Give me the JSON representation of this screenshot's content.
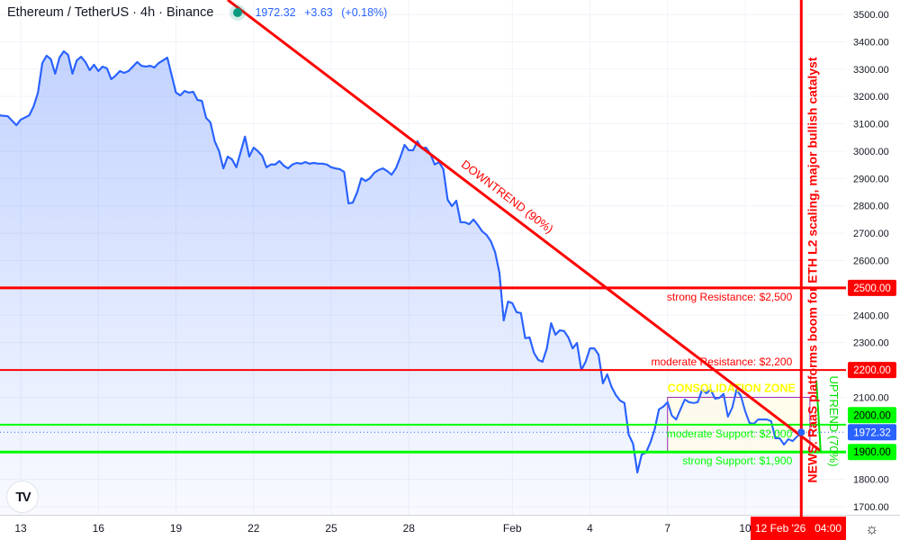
{
  "header": {
    "symbol": "Ethereum / TetherUS · 4h · Binance",
    "last_price": "1972.32",
    "change": "+3.63",
    "change_pct": "(+0.18%)",
    "status_color": "#089981"
  },
  "crosshair": {
    "date": "12 Feb '26",
    "time": "04:00"
  },
  "icons": {
    "logo": "tradingview-logo-icon",
    "settings": "settings-sun-icon"
  },
  "logo_text": "TV",
  "chart_data": {
    "type": "area",
    "title": "Ethereum / TetherUS · 4h · Binance",
    "line_color": "#2962ff",
    "grid": true,
    "ylim": [
      1700,
      3500
    ],
    "y_ticks": [
      1700,
      1800,
      1900,
      2000,
      2100,
      2200,
      2300,
      2400,
      2500,
      2600,
      2700,
      2800,
      2900,
      3000,
      3100,
      3200,
      3300,
      3400,
      3500
    ],
    "x_ticks": [
      {
        "label": "13",
        "date": "2026-01-13"
      },
      {
        "label": "16",
        "date": "2026-01-16"
      },
      {
        "label": "19",
        "date": "2026-01-19"
      },
      {
        "label": "22",
        "date": "2026-01-22"
      },
      {
        "label": "25",
        "date": "2026-01-25"
      },
      {
        "label": "28",
        "date": "2026-01-28"
      },
      {
        "label": "Feb",
        "date": "2026-02-01"
      },
      {
        "label": "4",
        "date": "2026-02-04"
      },
      {
        "label": "7",
        "date": "2026-02-07"
      },
      {
        "label": "10",
        "date": "2026-02-10"
      }
    ],
    "series": [
      {
        "values": [
          [
            "2026-01-12T04:00",
            3131
          ],
          [
            "2026-01-12T12:00",
            3128
          ],
          [
            "2026-01-12T20:00",
            3095
          ],
          [
            "2026-01-13T00:00",
            3115
          ],
          [
            "2026-01-13T08:00",
            3131
          ],
          [
            "2026-01-13T12:00",
            3164
          ],
          [
            "2026-01-13T16:00",
            3214
          ],
          [
            "2026-01-13T20:00",
            3322
          ],
          [
            "2026-01-14T00:00",
            3349
          ],
          [
            "2026-01-14T04:00",
            3336
          ],
          [
            "2026-01-14T08:00",
            3283
          ],
          [
            "2026-01-14T12:00",
            3342
          ],
          [
            "2026-01-14T16:00",
            3365
          ],
          [
            "2026-01-14T20:00",
            3352
          ],
          [
            "2026-01-15T00:00",
            3283
          ],
          [
            "2026-01-15T04:00",
            3332
          ],
          [
            "2026-01-15T08:00",
            3345
          ],
          [
            "2026-01-15T12:00",
            3326
          ],
          [
            "2026-01-15T16:00",
            3296
          ],
          [
            "2026-01-15T20:00",
            3316
          ],
          [
            "2026-01-16T00:00",
            3293
          ],
          [
            "2026-01-16T04:00",
            3309
          ],
          [
            "2026-01-16T08:00",
            3303
          ],
          [
            "2026-01-16T12:00",
            3263
          ],
          [
            "2026-01-16T16:00",
            3276
          ],
          [
            "2026-01-16T20:00",
            3293
          ],
          [
            "2026-01-17T00:00",
            3286
          ],
          [
            "2026-01-17T04:00",
            3293
          ],
          [
            "2026-01-17T08:00",
            3309
          ],
          [
            "2026-01-17T12:00",
            3326
          ],
          [
            "2026-01-17T16:00",
            3312
          ],
          [
            "2026-01-17T20:00",
            3309
          ],
          [
            "2026-01-18T00:00",
            3312
          ],
          [
            "2026-01-18T04:00",
            3306
          ],
          [
            "2026-01-18T08:00",
            3322
          ],
          [
            "2026-01-18T12:00",
            3332
          ],
          [
            "2026-01-18T16:00",
            3342
          ],
          [
            "2026-01-19T00:00",
            3214
          ],
          [
            "2026-01-19T04:00",
            3204
          ],
          [
            "2026-01-19T08:00",
            3220
          ],
          [
            "2026-01-19T12:00",
            3214
          ],
          [
            "2026-01-19T16:00",
            3217
          ],
          [
            "2026-01-19T20:00",
            3187
          ],
          [
            "2026-01-20T00:00",
            3184
          ],
          [
            "2026-01-20T04:00",
            3122
          ],
          [
            "2026-01-20T08:00",
            3105
          ],
          [
            "2026-01-20T12:00",
            3036
          ],
          [
            "2026-01-20T16:00",
            3000
          ],
          [
            "2026-01-20T20:00",
            2937
          ],
          [
            "2026-01-21T00:00",
            2980
          ],
          [
            "2026-01-21T04:00",
            2970
          ],
          [
            "2026-01-21T08:00",
            2941
          ],
          [
            "2026-01-21T12:00",
            2997
          ],
          [
            "2026-01-21T16:00",
            3053
          ],
          [
            "2026-01-21T20:00",
            2980
          ],
          [
            "2026-01-22T00:00",
            3013
          ],
          [
            "2026-01-22T04:00",
            3000
          ],
          [
            "2026-01-22T08:00",
            2983
          ],
          [
            "2026-01-22T12:00",
            2941
          ],
          [
            "2026-01-22T16:00",
            2951
          ],
          [
            "2026-01-22T20:00",
            2951
          ],
          [
            "2026-01-23T00:00",
            2964
          ],
          [
            "2026-01-23T04:00",
            2947
          ],
          [
            "2026-01-23T08:00",
            2937
          ],
          [
            "2026-01-23T12:00",
            2951
          ],
          [
            "2026-01-23T16:00",
            2957
          ],
          [
            "2026-01-23T20:00",
            2954
          ],
          [
            "2026-01-24T00:00",
            2960
          ],
          [
            "2026-01-24T04:00",
            2954
          ],
          [
            "2026-01-24T08:00",
            2957
          ],
          [
            "2026-01-24T12:00",
            2954
          ],
          [
            "2026-01-24T16:00",
            2954
          ],
          [
            "2026-01-24T20:00",
            2951
          ],
          [
            "2026-01-25T00:00",
            2941
          ],
          [
            "2026-01-25T04:00",
            2937
          ],
          [
            "2026-01-25T08:00",
            2934
          ],
          [
            "2026-01-25T12:00",
            2924
          ],
          [
            "2026-01-25T16:00",
            2809
          ],
          [
            "2026-01-25T20:00",
            2812
          ],
          [
            "2026-01-26T00:00",
            2849
          ],
          [
            "2026-01-26T04:00",
            2901
          ],
          [
            "2026-01-26T08:00",
            2891
          ],
          [
            "2026-01-26T12:00",
            2901
          ],
          [
            "2026-01-26T16:00",
            2921
          ],
          [
            "2026-01-26T20:00",
            2931
          ],
          [
            "2026-01-27T00:00",
            2937
          ],
          [
            "2026-01-27T04:00",
            2927
          ],
          [
            "2026-01-27T08:00",
            2914
          ],
          [
            "2026-01-27T12:00",
            2937
          ],
          [
            "2026-01-27T16:00",
            2977
          ],
          [
            "2026-01-27T20:00",
            3023
          ],
          [
            "2026-01-28T00:00",
            3003
          ],
          [
            "2026-01-28T04:00",
            3003
          ],
          [
            "2026-01-28T08:00",
            3036
          ],
          [
            "2026-01-28T12:00",
            3010
          ],
          [
            "2026-01-28T16:00",
            3013
          ],
          [
            "2026-01-28T20:00",
            2990
          ],
          [
            "2026-01-29T00:00",
            2951
          ],
          [
            "2026-01-29T04:00",
            2960
          ],
          [
            "2026-01-29T08:00",
            2934
          ],
          [
            "2026-01-29T12:00",
            2822
          ],
          [
            "2026-01-29T16:00",
            2799
          ],
          [
            "2026-01-29T20:00",
            2819
          ],
          [
            "2026-01-30T00:00",
            2740
          ],
          [
            "2026-01-30T04:00",
            2740
          ],
          [
            "2026-01-30T08:00",
            2733
          ],
          [
            "2026-01-30T12:00",
            2750
          ],
          [
            "2026-01-30T16:00",
            2730
          ],
          [
            "2026-01-30T20:00",
            2707
          ],
          [
            "2026-01-31T00:00",
            2694
          ],
          [
            "2026-01-31T04:00",
            2671
          ],
          [
            "2026-01-31T08:00",
            2631
          ],
          [
            "2026-01-31T12:00",
            2556
          ],
          [
            "2026-01-31T16:00",
            2381
          ],
          [
            "2026-01-31T20:00",
            2450
          ],
          [
            "2026-02-01T00:00",
            2444
          ],
          [
            "2026-02-01T04:00",
            2411
          ],
          [
            "2026-02-01T08:00",
            2408
          ],
          [
            "2026-02-01T12:00",
            2316
          ],
          [
            "2026-02-01T16:00",
            2319
          ],
          [
            "2026-02-01T20:00",
            2263
          ],
          [
            "2026-02-02T00:00",
            2237
          ],
          [
            "2026-02-02T04:00",
            2230
          ],
          [
            "2026-02-02T08:00",
            2279
          ],
          [
            "2026-02-02T12:00",
            2371
          ],
          [
            "2026-02-02T16:00",
            2329
          ],
          [
            "2026-02-02T20:00",
            2345
          ],
          [
            "2026-02-03T00:00",
            2342
          ],
          [
            "2026-02-03T04:00",
            2319
          ],
          [
            "2026-02-03T08:00",
            2279
          ],
          [
            "2026-02-03T12:00",
            2299
          ],
          [
            "2026-02-03T16:00",
            2200
          ],
          [
            "2026-02-03T20:00",
            2230
          ],
          [
            "2026-02-04T00:00",
            2279
          ],
          [
            "2026-02-04T04:00",
            2279
          ],
          [
            "2026-02-04T08:00",
            2256
          ],
          [
            "2026-02-04T12:00",
            2151
          ],
          [
            "2026-02-04T16:00",
            2184
          ],
          [
            "2026-02-04T20:00",
            2138
          ],
          [
            "2026-02-05T00:00",
            2108
          ],
          [
            "2026-02-05T04:00",
            2088
          ],
          [
            "2026-02-05T08:00",
            2079
          ],
          [
            "2026-02-05T12:00",
            1963
          ],
          [
            "2026-02-05T16:00",
            1930
          ],
          [
            "2026-02-05T20:00",
            1825
          ],
          [
            "2026-02-06T00:00",
            1891
          ],
          [
            "2026-02-06T04:00",
            1898
          ],
          [
            "2026-02-06T08:00",
            1934
          ],
          [
            "2026-02-06T12:00",
            1983
          ],
          [
            "2026-02-06T16:00",
            2056
          ],
          [
            "2026-02-06T20:00",
            2066
          ],
          [
            "2026-02-07T00:00",
            2082
          ],
          [
            "2026-02-07T04:00",
            2033
          ],
          [
            "2026-02-07T08:00",
            2019
          ],
          [
            "2026-02-07T12:00",
            2056
          ],
          [
            "2026-02-07T16:00",
            2092
          ],
          [
            "2026-02-07T20:00",
            2082
          ],
          [
            "2026-02-08T00:00",
            2079
          ],
          [
            "2026-02-08T04:00",
            2082
          ],
          [
            "2026-02-08T08:00",
            2128
          ],
          [
            "2026-02-08T12:00",
            2115
          ],
          [
            "2026-02-08T16:00",
            2128
          ],
          [
            "2026-02-08T20:00",
            2095
          ],
          [
            "2026-02-09T00:00",
            2098
          ],
          [
            "2026-02-09T04:00",
            2112
          ],
          [
            "2026-02-09T08:00",
            2029
          ],
          [
            "2026-02-09T12:00",
            2062
          ],
          [
            "2026-02-09T16:00",
            2128
          ],
          [
            "2026-02-09T20:00",
            2105
          ],
          [
            "2026-02-10T00:00",
            2049
          ],
          [
            "2026-02-10T04:00",
            2006
          ],
          [
            "2026-02-10T08:00",
            2003
          ],
          [
            "2026-02-10T12:00",
            2019
          ],
          [
            "2026-02-10T16:00",
            2019
          ],
          [
            "2026-02-10T20:00",
            2019
          ],
          [
            "2026-02-11T00:00",
            2013
          ],
          [
            "2026-02-11T04:00",
            1950
          ],
          [
            "2026-02-11T08:00",
            1950
          ],
          [
            "2026-02-11T12:00",
            1927
          ],
          [
            "2026-02-11T16:00",
            1947
          ],
          [
            "2026-02-11T20:00",
            1940
          ],
          [
            "2026-02-12T04:00",
            1972.32
          ]
        ]
      }
    ],
    "current_price": {
      "value": 1972.32,
      "label": "1972.32",
      "color": "#2962ff"
    },
    "levels": [
      {
        "price": 2500,
        "label": "strong Resistance: $2,500",
        "axis_label": "2500.00",
        "color": "#ff0000",
        "strong": true,
        "label_pos": "below"
      },
      {
        "price": 2200,
        "label": "moderate Resistance: $2,200",
        "axis_label": "2200.00",
        "color": "#ff0000",
        "strong": false,
        "label_pos": "above"
      },
      {
        "price": 2000,
        "label": "moderate Support: $2,000",
        "axis_label": "2000.00",
        "color": "#00ff00",
        "strong": false,
        "label_pos": "below"
      },
      {
        "price": 1900,
        "label": "strong Support: $1,900",
        "axis_label": "1900.00",
        "color": "#00ff00",
        "strong": true,
        "label_pos": "below"
      }
    ],
    "downtrend": {
      "label": "DOWNTREND (90%)",
      "color": "#ff0000",
      "from": [
        "2026-01-21T00:00",
        3553
      ],
      "to": [
        "2026-02-12T22:00",
        1904
      ]
    },
    "uptrend": {
      "label": "UPTREND (70%)",
      "color": "#00dd00",
      "from": [
        "2026-02-12T22:00",
        1900
      ],
      "to": [
        "2026-02-12T18:00",
        2160
      ]
    },
    "consolidation_zone": {
      "label": "CONSOLIDATION ZONE",
      "from": "2026-02-07T00:00",
      "to": "2026-02-12T12:00",
      "high": 2100,
      "low": 1900,
      "border": "#9c27b0",
      "fill": "#fffde7",
      "label_color": "#ffff00"
    },
    "news": {
      "date": "2026-02-12T04:00",
      "label": "NEWS: RaaS platforms boom for ETH L2 scaling, major bullish catalyst",
      "color": "#ff0000"
    }
  }
}
